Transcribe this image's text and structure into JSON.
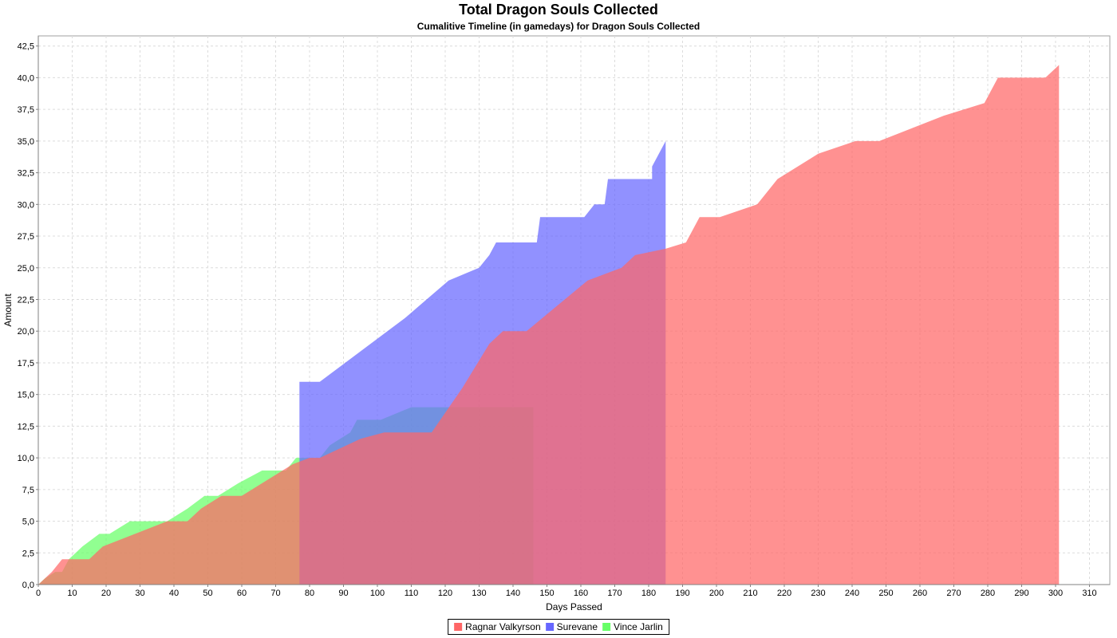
{
  "chart_data": {
    "type": "area",
    "title": "Total Dragon Souls Collected",
    "subtitle": "Cumalitive Timeline (in gamedays) for Dragon Souls Collected",
    "xlabel": "Days Passed",
    "ylabel": "Amount",
    "xlim": [
      0,
      316
    ],
    "ylim": [
      0,
      43.3
    ],
    "x_ticks": [
      0,
      10,
      20,
      30,
      40,
      50,
      60,
      70,
      80,
      90,
      100,
      110,
      120,
      130,
      140,
      150,
      160,
      170,
      180,
      190,
      200,
      210,
      220,
      230,
      240,
      250,
      260,
      270,
      280,
      290,
      300,
      310
    ],
    "y_ticks": [
      "0,0",
      "2,5",
      "5,0",
      "7,5",
      "10,0",
      "12,5",
      "15,0",
      "17,5",
      "20,0",
      "22,5",
      "25,0",
      "27,5",
      "30,0",
      "32,5",
      "35,0",
      "37,5",
      "40,0",
      "42,5"
    ],
    "grid": true,
    "legend_position": "bottom",
    "series": [
      {
        "name": "Vince Jarlin",
        "color": "#66ff66",
        "points": [
          [
            0,
            0
          ],
          [
            2,
            0.5
          ],
          [
            5,
            1
          ],
          [
            7,
            1
          ],
          [
            9,
            2
          ],
          [
            13,
            3
          ],
          [
            18,
            4
          ],
          [
            21,
            4
          ],
          [
            27,
            5
          ],
          [
            38,
            5
          ],
          [
            44,
            6
          ],
          [
            49,
            7
          ],
          [
            53,
            7
          ],
          [
            59,
            8
          ],
          [
            66,
            9
          ],
          [
            73,
            9
          ],
          [
            76,
            10
          ],
          [
            79,
            10
          ],
          [
            83,
            10
          ],
          [
            86,
            11
          ],
          [
            92,
            12
          ],
          [
            94,
            13
          ],
          [
            101,
            13
          ],
          [
            110,
            14
          ],
          [
            146,
            14
          ],
          [
            146,
            0
          ]
        ]
      },
      {
        "name": "Surevane",
        "color": "#6666ff",
        "points": [
          [
            0,
            0
          ],
          [
            77,
            0
          ],
          [
            77,
            16
          ],
          [
            83,
            16
          ],
          [
            108,
            21
          ],
          [
            121,
            24
          ],
          [
            130,
            25
          ],
          [
            133,
            26
          ],
          [
            135,
            27
          ],
          [
            147,
            27
          ],
          [
            148,
            29
          ],
          [
            161,
            29
          ],
          [
            164,
            30
          ],
          [
            167,
            30
          ],
          [
            168,
            32
          ],
          [
            181,
            32
          ],
          [
            181,
            33
          ],
          [
            185,
            35
          ],
          [
            185,
            0
          ]
        ]
      },
      {
        "name": "Ragnar Valkyrson",
        "color": "#ff6666",
        "points": [
          [
            0,
            0
          ],
          [
            4,
            1
          ],
          [
            7,
            2
          ],
          [
            10,
            2
          ],
          [
            15,
            2
          ],
          [
            19,
            3
          ],
          [
            38,
            5
          ],
          [
            44,
            5
          ],
          [
            48,
            6
          ],
          [
            54,
            7
          ],
          [
            60,
            7
          ],
          [
            75,
            9.5
          ],
          [
            80,
            10
          ],
          [
            83,
            10
          ],
          [
            95,
            11.5
          ],
          [
            102,
            12
          ],
          [
            116,
            12
          ],
          [
            125,
            15.5
          ],
          [
            133,
            19
          ],
          [
            137,
            20
          ],
          [
            144,
            20
          ],
          [
            153,
            22
          ],
          [
            162,
            24
          ],
          [
            172,
            25
          ],
          [
            176,
            26
          ],
          [
            185,
            26.5
          ],
          [
            191,
            27
          ],
          [
            195,
            29
          ],
          [
            201,
            29
          ],
          [
            212,
            30
          ],
          [
            218,
            32
          ],
          [
            230,
            34
          ],
          [
            241,
            35
          ],
          [
            248,
            35
          ],
          [
            267,
            37
          ],
          [
            279,
            38
          ],
          [
            283,
            40
          ],
          [
            297,
            40
          ],
          [
            301,
            41
          ],
          [
            301,
            0
          ]
        ]
      }
    ]
  },
  "legend": {
    "items": [
      {
        "name": "Ragnar Valkyrson",
        "color": "#ff6666"
      },
      {
        "name": "Surevane",
        "color": "#6666ff"
      },
      {
        "name": "Vince Jarlin",
        "color": "#66ff66"
      }
    ]
  }
}
